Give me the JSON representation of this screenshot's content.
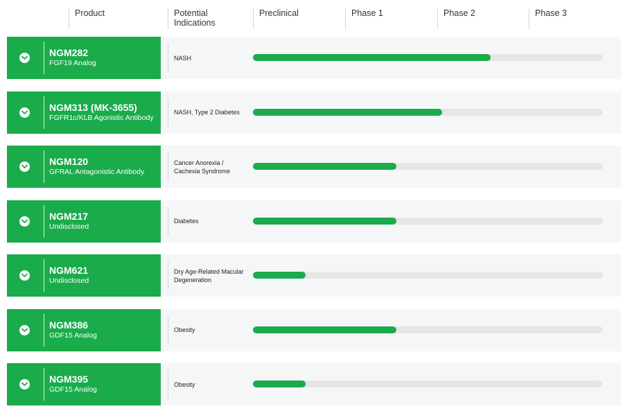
{
  "header": {
    "product": "Product",
    "indications": "Potential\nIndications",
    "phases": [
      "Preclinical",
      "Phase 1",
      "Phase 2",
      "Phase 3"
    ]
  },
  "colors": {
    "brand": "#1aab4b",
    "track": "#e6e6e6",
    "row_bg": "#f5f6f8"
  },
  "icons": {
    "expand": "chevron-down-icon"
  },
  "pipeline": [
    {
      "name": "NGM282",
      "subtitle": "FGF19 Analog",
      "indication": "NASH",
      "progress": 0.68
    },
    {
      "name": "NGM313 (MK-3655)",
      "subtitle": "FGFR1c/KLB Agonistic Antibody",
      "indication": "NASH, Type 2 Diabetes",
      "progress": 0.54
    },
    {
      "name": "NGM120",
      "subtitle": "GFRAL Antagonistic Antibody",
      "indication": "Cancer Anorexia /\nCachexia Syndrome",
      "progress": 0.41
    },
    {
      "name": "NGM217",
      "subtitle": "Undisclosed",
      "indication": "Diabetes",
      "progress": 0.41
    },
    {
      "name": "NGM621",
      "subtitle": "Undisclosed",
      "indication": "Dry Age-Related Macular\nDegeneration",
      "progress": 0.15
    },
    {
      "name": "NGM386",
      "subtitle": "GDF15 Analog",
      "indication": "Obesity",
      "progress": 0.41
    },
    {
      "name": "NGM395",
      "subtitle": "GDF15 Analog",
      "indication": "Obesity",
      "progress": 0.15
    }
  ]
}
